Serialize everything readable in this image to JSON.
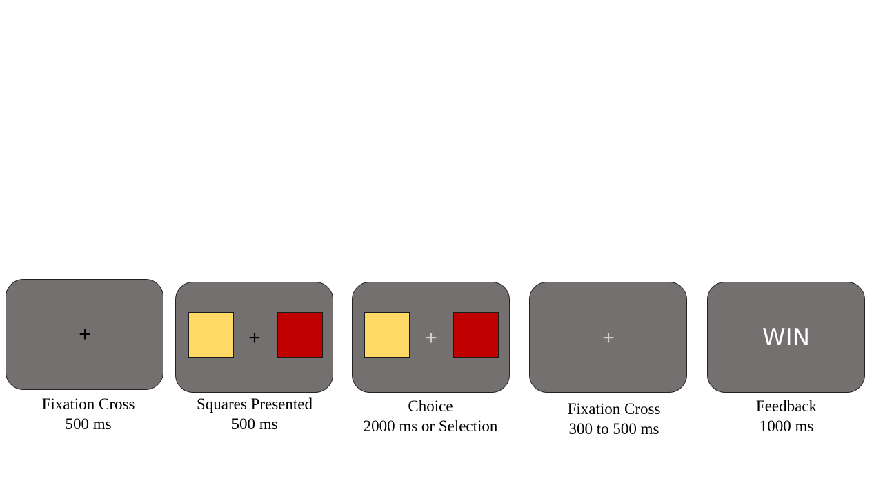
{
  "colors": {
    "panel": "#757070",
    "yellow_square": "#ffd966",
    "red_square": "#c00000",
    "cross_black": "#000000",
    "cross_light": "#d0cece",
    "feedback_text": "#ffffff"
  },
  "stages": [
    {
      "symbol": "+",
      "caption_line1": "Fixation Cross",
      "caption_line2": "500 ms"
    },
    {
      "symbol": "+",
      "caption_line1": "Squares Presented",
      "caption_line2": "500 ms"
    },
    {
      "symbol": "+",
      "caption_line1": "Choice",
      "caption_line2": "2000 ms or Selection"
    },
    {
      "symbol": "+",
      "caption_line1": "Fixation Cross",
      "caption_line2": "300 to 500 ms"
    },
    {
      "feedback_word": "WIN",
      "caption_line1": "Feedback",
      "caption_line2": "1000 ms"
    }
  ]
}
